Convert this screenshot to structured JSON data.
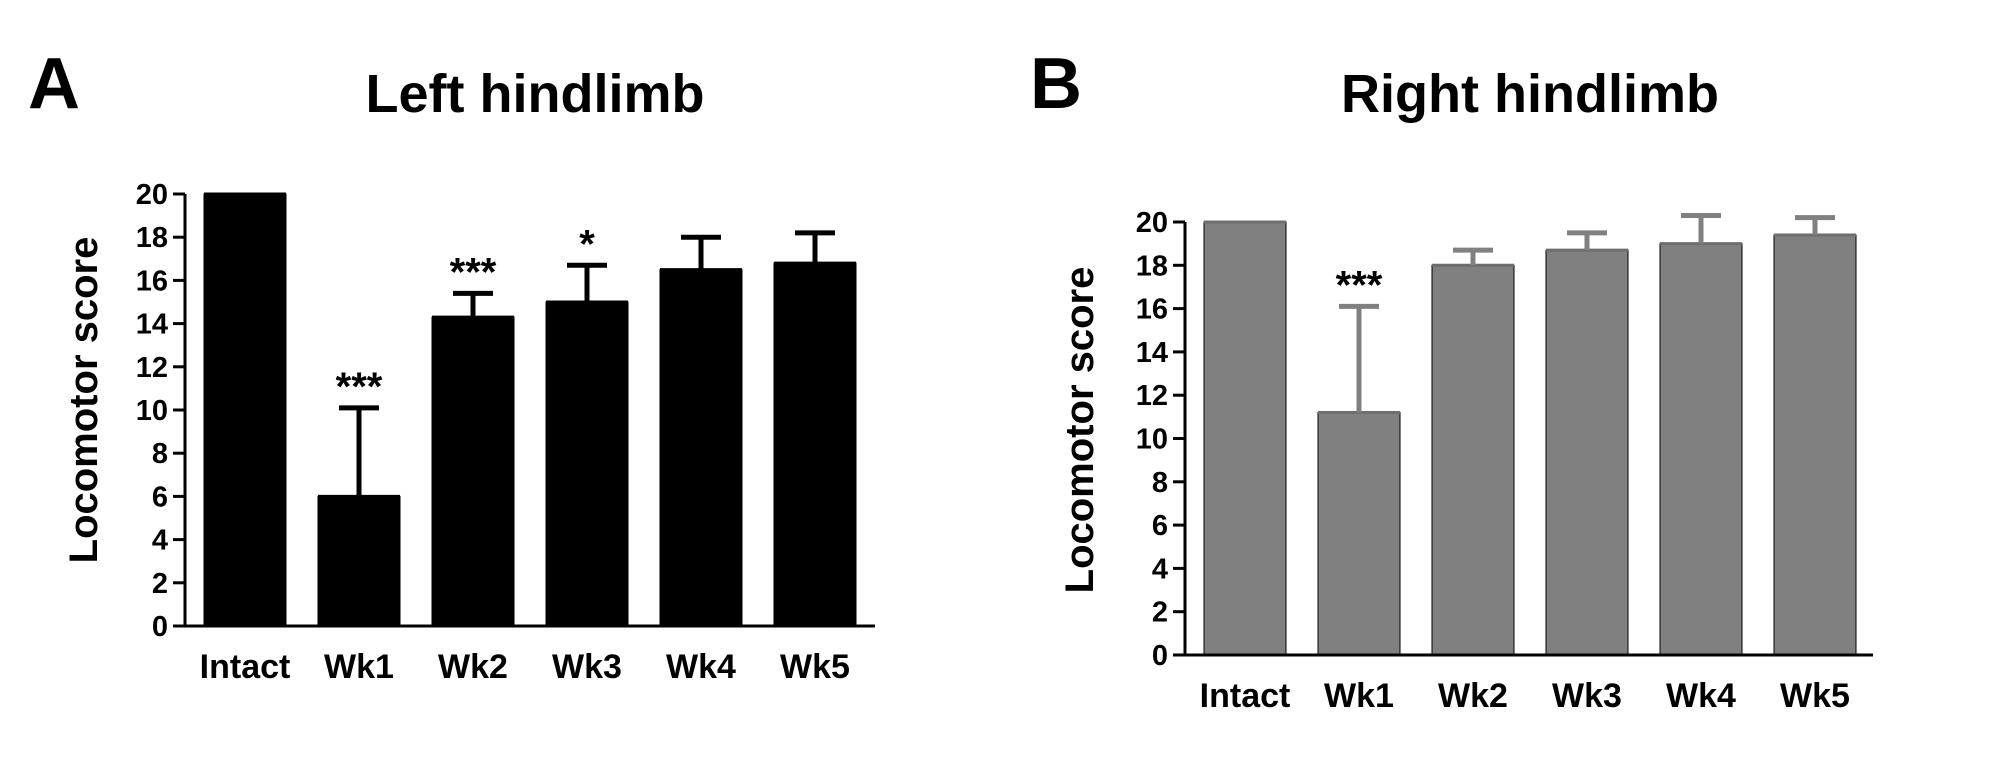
{
  "chart_data": [
    {
      "panel": "A",
      "type": "bar",
      "title": "Left hindlimb",
      "xlabel": "",
      "ylabel": "Locomotor score",
      "ylim": [
        0,
        20
      ],
      "yticks": [
        0,
        2,
        4,
        6,
        8,
        10,
        12,
        14,
        16,
        18,
        20
      ],
      "bar_color": "#000000",
      "categories": [
        "Intact",
        "Wk1",
        "Wk2",
        "Wk3",
        "Wk4",
        "Wk5"
      ],
      "values": [
        20,
        6,
        14.3,
        15,
        16.5,
        16.8
      ],
      "errors": [
        0,
        4.1,
        1.1,
        1.7,
        1.5,
        1.4
      ],
      "significance": [
        "",
        "***",
        "***",
        "*",
        "",
        ""
      ],
      "grid": false
    },
    {
      "panel": "B",
      "type": "bar",
      "title": "Right hindlimb",
      "xlabel": "",
      "ylabel": "Locomotor score",
      "ylim": [
        0,
        20
      ],
      "yticks": [
        0,
        2,
        4,
        6,
        8,
        10,
        12,
        14,
        16,
        18,
        20
      ],
      "bar_color": "#808080",
      "categories": [
        "Intact",
        "Wk1",
        "Wk2",
        "Wk3",
        "Wk4",
        "Wk5"
      ],
      "values": [
        20,
        11.2,
        18,
        18.7,
        19,
        19.4
      ],
      "errors": [
        0,
        4.9,
        0.7,
        0.8,
        1.3,
        0.8
      ],
      "significance": [
        "",
        "***",
        "",
        "",
        "",
        ""
      ],
      "grid": false
    }
  ]
}
